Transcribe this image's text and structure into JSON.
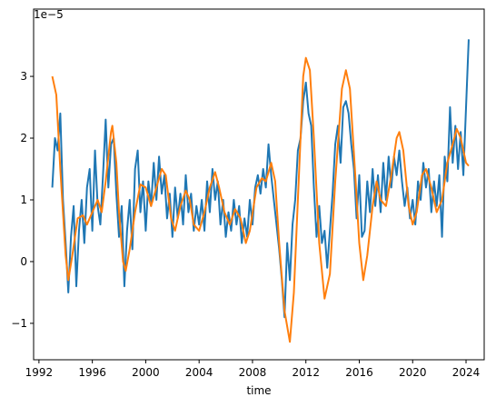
{
  "chart_data": {
    "type": "line",
    "x_label": "time",
    "offset_text": "1e−5",
    "xlim": [
      1991.6,
      2025.36
    ],
    "ylim": [
      -1.59,
      4.09
    ],
    "xticks": [
      1992,
      1996,
      2000,
      2004,
      2008,
      2012,
      2016,
      2020,
      2024
    ],
    "yticks": [
      {
        "value": -1,
        "label": "−1"
      },
      0,
      1,
      2,
      3
    ],
    "series": [
      {
        "color": "#1f77b4",
        "x": [
          1993,
          1993.2,
          1993.4,
          1993.6,
          1993.8,
          1994,
          1994.2,
          1994.4,
          1994.6,
          1994.8,
          1995,
          1995.2,
          1995.4,
          1995.6,
          1995.8,
          1996,
          1996.2,
          1996.4,
          1996.6,
          1996.8,
          1997,
          1997.2,
          1997.4,
          1997.6,
          1997.8,
          1998,
          1998.2,
          1998.4,
          1998.6,
          1998.8,
          1999,
          1999.2,
          1999.4,
          1999.6,
          1999.8,
          2000,
          2000.2,
          2000.4,
          2000.6,
          2000.8,
          2001,
          2001.2,
          2001.4,
          2001.6,
          2001.8,
          2002,
          2002.2,
          2002.4,
          2002.6,
          2002.8,
          2003,
          2003.2,
          2003.4,
          2003.6,
          2003.8,
          2004,
          2004.2,
          2004.4,
          2004.6,
          2004.8,
          2005,
          2005.2,
          2005.4,
          2005.6,
          2005.8,
          2006,
          2006.2,
          2006.4,
          2006.6,
          2006.8,
          2007,
          2007.2,
          2007.4,
          2007.6,
          2007.8,
          2008,
          2008.2,
          2008.4,
          2008.6,
          2008.8,
          2009,
          2009.2,
          2009.4,
          2009.6,
          2009.8,
          2010,
          2010.2,
          2010.4,
          2010.6,
          2010.8,
          2011,
          2011.2,
          2011.4,
          2011.6,
          2011.8,
          2012,
          2012.2,
          2012.4,
          2012.6,
          2012.8,
          2013,
          2013.2,
          2013.4,
          2013.6,
          2013.8,
          2014,
          2014.2,
          2014.4,
          2014.6,
          2014.8,
          2015,
          2015.2,
          2015.4,
          2015.6,
          2015.8,
          2016,
          2016.2,
          2016.4,
          2016.6,
          2016.8,
          2017,
          2017.2,
          2017.4,
          2017.6,
          2017.8,
          2018,
          2018.2,
          2018.4,
          2018.6,
          2018.8,
          2019,
          2019.2,
          2019.4,
          2019.6,
          2019.8,
          2020,
          2020.2,
          2020.4,
          2020.6,
          2020.8,
          2021,
          2021.2,
          2021.4,
          2021.6,
          2021.8,
          2022,
          2022.2,
          2022.4,
          2022.6,
          2022.8,
          2023,
          2023.2,
          2023.4,
          2023.6,
          2023.8,
          2024,
          2024.2
        ],
        "values": [
          1.2,
          2.0,
          1.8,
          2.4,
          1.0,
          0.3,
          -0.5,
          0.4,
          0.9,
          -0.4,
          0.5,
          1.0,
          0.3,
          1.2,
          1.5,
          0.5,
          1.8,
          0.9,
          0.6,
          1.4,
          2.3,
          1.2,
          1.9,
          2.0,
          1.1,
          0.4,
          0.9,
          -0.4,
          0.5,
          1.0,
          0.2,
          1.5,
          1.8,
          0.8,
          1.3,
          0.5,
          1.3,
          0.9,
          1.6,
          1.0,
          1.7,
          1.1,
          1.4,
          0.7,
          1.1,
          0.4,
          1.2,
          0.7,
          1.1,
          0.6,
          1.4,
          0.8,
          1.1,
          0.5,
          0.9,
          0.6,
          1.0,
          0.5,
          1.3,
          0.8,
          1.5,
          1.0,
          1.3,
          0.6,
          1.0,
          0.4,
          0.8,
          0.5,
          1.0,
          0.6,
          0.9,
          0.3,
          0.7,
          0.4,
          1.0,
          0.6,
          1.2,
          1.4,
          1.1,
          1.5,
          1.2,
          1.9,
          1.4,
          1.0,
          0.6,
          0.2,
          -0.3,
          -0.9,
          0.3,
          -0.3,
          0.6,
          1.0,
          1.8,
          2.0,
          2.6,
          2.9,
          2.4,
          2.2,
          1.2,
          0.4,
          0.9,
          0.3,
          0.5,
          -0.1,
          0.5,
          1.1,
          1.9,
          2.2,
          1.6,
          2.5,
          2.6,
          2.4,
          1.9,
          1.5,
          0.7,
          1.4,
          0.4,
          0.5,
          1.3,
          0.8,
          1.5,
          0.9,
          1.4,
          0.8,
          1.6,
          1.0,
          1.7,
          1.2,
          1.7,
          1.4,
          1.8,
          1.3,
          0.9,
          1.2,
          0.7,
          1.0,
          0.6,
          1.3,
          1.0,
          1.6,
          1.2,
          1.5,
          0.8,
          1.3,
          0.9,
          1.4,
          0.4,
          1.7,
          1.3,
          2.5,
          1.6,
          2.2,
          1.5,
          2.1,
          1.4,
          2.5,
          3.6
        ]
      },
      {
        "color": "#ff7f0e",
        "x": [
          1993,
          1993.3,
          1993.6,
          1994,
          1994.2,
          1994.5,
          1994.9,
          1995.3,
          1995.6,
          1996,
          1996.4,
          1996.7,
          1997,
          1997.4,
          1997.5,
          1997.8,
          1998,
          1998.3,
          1998.5,
          1998.8,
          1999.2,
          1999.6,
          2000,
          2000.4,
          2000.8,
          2001.2,
          2001.5,
          2001.9,
          2002.2,
          2002.6,
          2003,
          2003.3,
          2003.6,
          2004,
          2004.4,
          2004.8,
          2005.2,
          2005.5,
          2005.9,
          2006.3,
          2006.7,
          2007.1,
          2007.5,
          2007.8,
          2008.3,
          2008.7,
          2009,
          2009.4,
          2009.7,
          2010,
          2010.4,
          2010.8,
          2011.1,
          2011.5,
          2011.8,
          2012,
          2012.3,
          2012.6,
          2013,
          2013.4,
          2013.8,
          2014.2,
          2014.7,
          2015,
          2015.3,
          2015.7,
          2016,
          2016.3,
          2016.6,
          2017,
          2017.3,
          2017.6,
          2018,
          2018.4,
          2018.8,
          2019,
          2019.3,
          2019.7,
          2020,
          2020.3,
          2020.7,
          2021,
          2021.4,
          2021.8,
          2022.2,
          2022.6,
          2023,
          2023.3,
          2023.6,
          2024,
          2024.2
        ],
        "values": [
          3.0,
          2.7,
          1.5,
          0.1,
          -0.3,
          0.1,
          0.7,
          0.75,
          0.6,
          0.8,
          1.0,
          0.8,
          1.3,
          2.1,
          2.2,
          1.6,
          0.8,
          0,
          -0.15,
          0.2,
          0.8,
          1.25,
          1.2,
          0.9,
          1.2,
          1.5,
          1.4,
          0.7,
          0.5,
          0.9,
          1.15,
          1.0,
          0.6,
          0.5,
          0.8,
          1.2,
          1.45,
          1.2,
          0.8,
          0.6,
          0.85,
          0.7,
          0.3,
          0.5,
          1.2,
          1.35,
          1.3,
          1.6,
          1.3,
          0.3,
          -0.8,
          -1.3,
          -0.5,
          1.5,
          3.0,
          3.3,
          3.1,
          2.0,
          0.3,
          -0.6,
          -0.2,
          1.3,
          2.8,
          3.1,
          2.8,
          1.4,
          0.3,
          -0.3,
          0.1,
          0.9,
          1.3,
          1.0,
          0.9,
          1.4,
          2.0,
          2.1,
          1.8,
          0.9,
          0.6,
          0.8,
          1.4,
          1.5,
          1.2,
          0.8,
          1.0,
          1.6,
          1.9,
          2.15,
          2.0,
          1.6,
          1.55
        ]
      }
    ]
  }
}
